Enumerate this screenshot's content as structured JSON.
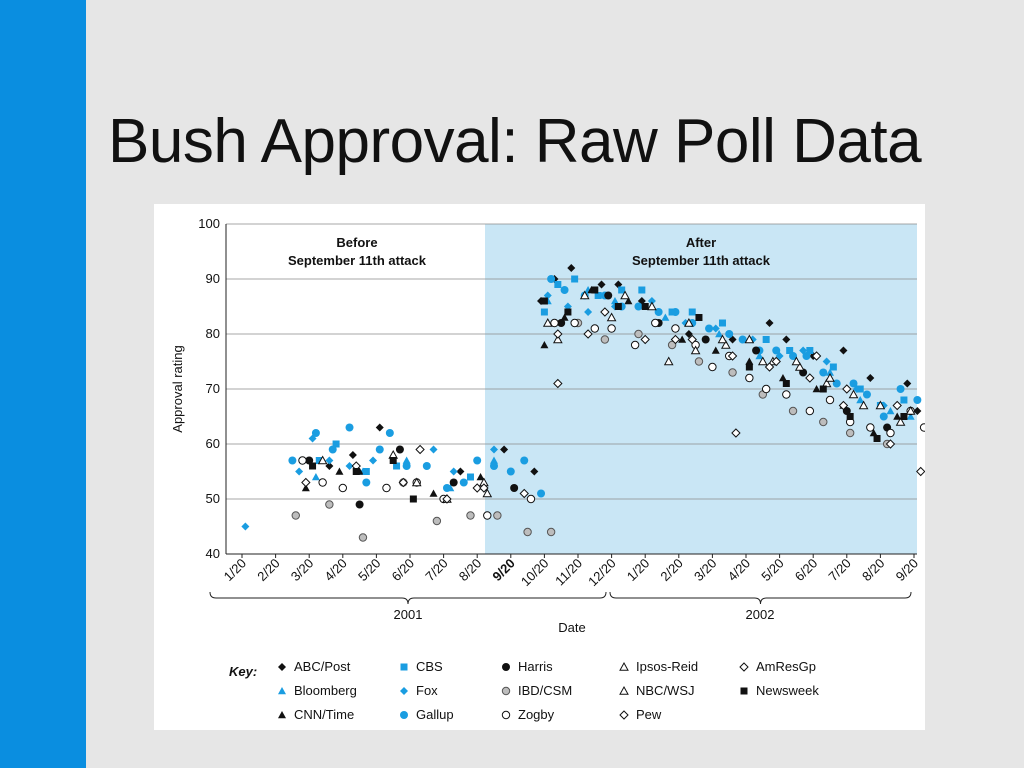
{
  "slide": {
    "title": "Bush Approval: Raw Poll Data"
  },
  "colors": {
    "accent_bar": "#0a8ee0",
    "after_region": "#c9e6f5",
    "series_blue": "#1a9de1",
    "series_black": "#111111",
    "series_gray": "#888888"
  },
  "chart_data": {
    "type": "scatter",
    "ylabel": "Approval rating",
    "xlabel": "Date",
    "ylim": [
      40,
      100
    ],
    "yticks": [
      40,
      50,
      60,
      70,
      80,
      90,
      100
    ],
    "grid": true,
    "x_tick_labels": [
      "1/20",
      "2/20",
      "3/20",
      "4/20",
      "5/20",
      "6/20",
      "7/20",
      "8/20",
      "9/20",
      "10/20",
      "11/20",
      "12/20",
      "1/20",
      "2/20",
      "3/20",
      "4/20",
      "5/20",
      "6/20",
      "7/20",
      "8/20",
      "9/20"
    ],
    "bold_tick_label": "9/20",
    "year_labels": [
      "2001",
      "2002"
    ],
    "region_labels": {
      "before": [
        "Before",
        "September 11th attack"
      ],
      "after": [
        "After",
        "September 11th attack"
      ]
    },
    "legend": {
      "key_label": "Key:",
      "placement": "bottom"
    },
    "series": [
      {
        "name": "ABC/Post",
        "marker": "diamond-filled",
        "color": "#111111",
        "x": [
          2.6,
          3.3,
          4.1,
          6.5,
          7.8,
          8.7,
          8.9,
          9.3,
          9.8,
          10.7,
          11.2,
          11.9,
          13.3,
          14.6,
          15.7,
          16.2,
          17.0,
          17.9,
          18.7,
          19.2,
          19.8,
          20.1
        ],
        "y": [
          56,
          58,
          63,
          55,
          59,
          55,
          86,
          90,
          92,
          89,
          89,
          86,
          80,
          79,
          82,
          79,
          76,
          77,
          72,
          63,
          71,
          66
        ]
      },
      {
        "name": "Bloomberg",
        "marker": "triangle-filled",
        "color": "#1a9de1",
        "x": [
          2.2,
          3.6,
          4.9,
          6.2,
          7.5,
          9.1,
          10.3,
          11.1,
          12.6,
          14.2,
          15.4,
          16.6,
          17.5,
          18.4,
          19.3,
          19.9
        ],
        "y": [
          54,
          55,
          57,
          52,
          57,
          86,
          88,
          86,
          83,
          80,
          76,
          74,
          73,
          68,
          66,
          65
        ]
      },
      {
        "name": "CNN/Time",
        "marker": "triangle-filled",
        "color": "#111111",
        "x": [
          1.9,
          2.9,
          3.5,
          5.7,
          7.1,
          9.0,
          9.6,
          10.4,
          11.5,
          13.1,
          14.1,
          15.1,
          16.1,
          17.1,
          17.9,
          18.8,
          19.5
        ],
        "y": [
          52,
          55,
          55,
          51,
          54,
          78,
          83,
          88,
          86,
          79,
          77,
          75,
          72,
          70,
          67,
          62,
          65
        ]
      },
      {
        "name": "CBS",
        "marker": "square-filled",
        "color": "#1a9de1",
        "x": [
          2.3,
          2.8,
          3.7,
          4.6,
          6.8,
          9.0,
          9.4,
          9.9,
          10.6,
          11.3,
          11.9,
          12.8,
          13.4,
          14.3,
          15.6,
          16.3,
          16.9,
          17.6,
          18.4,
          19.0,
          19.7
        ],
        "y": [
          57,
          60,
          55,
          56,
          54,
          84,
          89,
          90,
          87,
          88,
          88,
          84,
          84,
          82,
          79,
          77,
          77,
          74,
          70,
          67,
          68
        ]
      },
      {
        "name": "Fox",
        "marker": "diamond-filled",
        "color": "#1a9de1",
        "x": [
          0.1,
          1.7,
          2.1,
          2.6,
          3.2,
          3.9,
          4.7,
          5.7,
          6.3,
          7.5,
          9.1,
          9.7,
          10.3,
          11.1,
          12.2,
          13.2,
          14.1,
          15.2,
          16.0,
          16.7,
          17.4,
          18.3,
          19.1
        ],
        "y": [
          45,
          55,
          61,
          57,
          56,
          57,
          59,
          59,
          55,
          59,
          87,
          85,
          84,
          85,
          86,
          82,
          81,
          79,
          76,
          77,
          75,
          70,
          67
        ]
      },
      {
        "name": "Gallup",
        "marker": "circle-filled",
        "color": "#1a9de1",
        "x": [
          1.5,
          1.8,
          2.2,
          2.7,
          3.2,
          3.7,
          4.1,
          4.4,
          4.9,
          5.5,
          6.1,
          6.6,
          7.0,
          7.5,
          8.0,
          8.4,
          8.9,
          9.2,
          9.6,
          10.2,
          10.8,
          11.3,
          11.8,
          12.4,
          12.9,
          13.4,
          13.9,
          14.5,
          14.9,
          15.4,
          15.9,
          16.4,
          16.8,
          17.3,
          17.7,
          18.2,
          18.6,
          19.1,
          19.6,
          20.1
        ],
        "y": [
          57,
          57,
          62,
          59,
          63,
          53,
          59,
          62,
          56,
          56,
          52,
          53,
          57,
          56,
          55,
          57,
          51,
          90,
          88,
          87,
          87,
          85,
          85,
          84,
          84,
          82,
          81,
          80,
          79,
          77,
          77,
          76,
          76,
          73,
          71,
          71,
          69,
          65,
          70,
          68
        ]
      },
      {
        "name": "Harris",
        "marker": "circle-filled",
        "color": "#111111",
        "x": [
          2.0,
          3.5,
          4.7,
          6.3,
          8.1,
          9.5,
          10.9,
          12.4,
          13.8,
          15.3,
          16.7,
          18.0,
          19.2
        ],
        "y": [
          57,
          49,
          59,
          53,
          52,
          82,
          87,
          82,
          79,
          77,
          73,
          66,
          63
        ]
      },
      {
        "name": "IBD/CSM",
        "marker": "circle-gray",
        "color": "#888888",
        "x": [
          1.6,
          2.6,
          3.6,
          4.8,
          5.8,
          6.8,
          7.6,
          8.5,
          9.2,
          10.0,
          10.8,
          11.8,
          12.8,
          13.6,
          14.6,
          15.5,
          16.4,
          17.3,
          18.1,
          19.2
        ],
        "y": [
          47,
          49,
          43,
          53,
          46,
          47,
          47,
          44,
          44,
          82,
          79,
          80,
          78,
          75,
          73,
          69,
          66,
          64,
          62,
          60
        ]
      },
      {
        "name": "Zogby",
        "marker": "circle-open",
        "color": "#111111",
        "x": [
          1.8,
          2.4,
          3.0,
          4.3,
          5.2,
          6.0,
          7.3,
          8.6,
          9.3,
          9.9,
          10.5,
          11.0,
          11.7,
          12.3,
          12.9,
          13.5,
          14.0,
          14.5,
          15.1,
          15.6,
          16.2,
          16.9,
          17.5,
          18.1,
          18.7,
          19.3,
          19.9,
          20.3
        ],
        "y": [
          57,
          53,
          52,
          52,
          53,
          50,
          47,
          50,
          82,
          82,
          81,
          81,
          78,
          82,
          81,
          78,
          74,
          76,
          72,
          70,
          69,
          66,
          68,
          64,
          63,
          62,
          66,
          63
        ]
      },
      {
        "name": "Ipsos-Reid",
        "marker": "triangle-open",
        "color": "#111111",
        "x": [
          2.4,
          4.5,
          6.1,
          7.3,
          9.1,
          10.2,
          11.4,
          12.7,
          13.5,
          14.4,
          15.1,
          15.8,
          16.6,
          17.4,
          18.2,
          19.0,
          19.9
        ],
        "y": [
          57,
          58,
          50,
          51,
          82,
          87,
          87,
          75,
          77,
          78,
          79,
          75,
          74,
          71,
          69,
          67,
          66
        ]
      },
      {
        "name": "NBC/WSJ",
        "marker": "triangle-open",
        "color": "#111111",
        "x": [
          5.2,
          7.2,
          9.4,
          11.0,
          12.2,
          13.3,
          14.3,
          15.5,
          16.5,
          17.5,
          18.5,
          19.6
        ],
        "y": [
          53,
          53,
          79,
          83,
          85,
          82,
          79,
          75,
          75,
          72,
          67,
          64
        ]
      },
      {
        "name": "Pew",
        "marker": "diamond-open",
        "color": "#111111",
        "x": [
          1.9,
          3.4,
          4.8,
          6.1,
          7.0,
          8.4,
          9.4,
          10.8,
          12.0,
          13.4,
          14.6,
          15.7,
          16.9,
          17.9,
          19.3,
          20.2
        ],
        "y": [
          53,
          56,
          53,
          50,
          52,
          51,
          80,
          84,
          79,
          79,
          76,
          74,
          72,
          67,
          60,
          55
        ]
      },
      {
        "name": "AmResGp",
        "marker": "diamond-open",
        "color": "#111111",
        "x": [
          5.3,
          7.2,
          9.4,
          10.3,
          12.9,
          14.7,
          15.9,
          17.1,
          18.0,
          19.5
        ],
        "y": [
          59,
          52,
          71,
          80,
          79,
          62,
          75,
          76,
          70,
          67
        ]
      },
      {
        "name": "Newsweek",
        "marker": "square-filled",
        "color": "#111111",
        "x": [
          2.1,
          3.4,
          4.5,
          5.1,
          9.0,
          9.7,
          10.5,
          11.2,
          12.0,
          13.6,
          15.1,
          16.2,
          17.3,
          18.1,
          18.9,
          19.7
        ],
        "y": [
          56,
          55,
          57,
          50,
          86,
          84,
          88,
          85,
          85,
          83,
          74,
          71,
          70,
          65,
          61,
          65
        ]
      }
    ]
  }
}
